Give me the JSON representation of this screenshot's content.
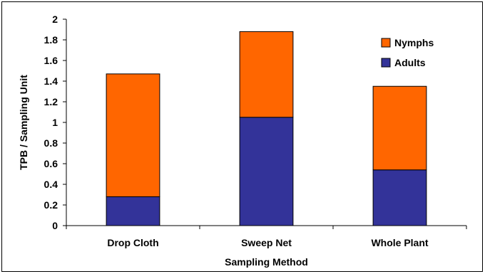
{
  "chart_data": {
    "type": "bar",
    "stacked": true,
    "categories": [
      "Drop Cloth",
      "Sweep Net",
      "Whole Plant"
    ],
    "series": [
      {
        "name": "Adults",
        "values": [
          0.28,
          1.05,
          0.54
        ],
        "color": "#333399"
      },
      {
        "name": "Nymphs",
        "values": [
          1.19,
          0.83,
          0.81
        ],
        "color": "#FF6600"
      }
    ],
    "xlabel": "Sampling Method",
    "ylabel": "TPB / Sampling Unit",
    "ylim": [
      0,
      2
    ],
    "yticks": [
      "0",
      "0.2",
      "0.4",
      "0.6",
      "0.8",
      "1",
      "1.2",
      "1.4",
      "1.6",
      "1.8",
      "2"
    ],
    "grid": false,
    "legend_position": "top-right",
    "legend_order": [
      "Nymphs",
      "Adults"
    ]
  }
}
